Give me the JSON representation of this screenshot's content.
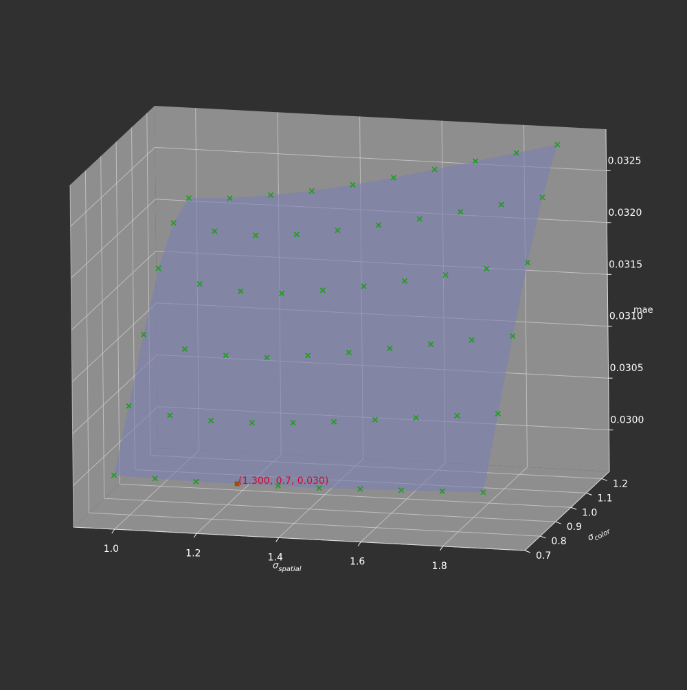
{
  "chart_data": {
    "type": "surface3d",
    "xlabel": "spatial",
    "ylabel": "color",
    "zlabel": "mae",
    "x_symbol": "σ",
    "y_symbol": "σ",
    "x_ticks": [
      "1.0",
      "1.2",
      "1.4",
      "1.6",
      "1.8"
    ],
    "y_ticks": [
      "0.7",
      "0.8",
      "0.9",
      "1.0",
      "1.1",
      "1.2"
    ],
    "z_ticks": [
      "0.0300",
      "0.0305",
      "0.0310",
      "0.0315",
      "0.0320",
      "0.0325"
    ],
    "xlim": [
      0.9,
      2.0
    ],
    "ylim": [
      0.7,
      1.25
    ],
    "zlim": [
      0.0296,
      0.0329
    ],
    "grid": true,
    "surface_color": "#7b7fb0",
    "marker_color": "#1f9e1f",
    "highlight_color": "#e0002a",
    "sigma_spatial": [
      1.0,
      1.1,
      1.2,
      1.3,
      1.4,
      1.5,
      1.6,
      1.7,
      1.8,
      1.9
    ],
    "sigma_color": [
      0.7,
      0.8,
      0.9,
      1.0,
      1.1,
      1.2
    ],
    "mae": [
      [
        0.03012,
        0.03011,
        0.0301,
        0.0301,
        0.0301,
        0.0301,
        0.03011,
        0.03012,
        0.03013,
        0.03014
      ],
      [
        0.03065,
        0.03058,
        0.03055,
        0.03055,
        0.03057,
        0.0306,
        0.03064,
        0.03068,
        0.03072,
        0.03076
      ],
      [
        0.0312,
        0.03108,
        0.03104,
        0.03104,
        0.03108,
        0.03113,
        0.03119,
        0.03125,
        0.03131,
        0.03137
      ],
      [
        0.0317,
        0.03157,
        0.03152,
        0.03152,
        0.03157,
        0.03163,
        0.0317,
        0.03178,
        0.03186,
        0.03194
      ],
      [
        0.032,
        0.03194,
        0.03192,
        0.03195,
        0.03201,
        0.03208,
        0.03216,
        0.03225,
        0.03234,
        0.03243
      ],
      [
        0.0321,
        0.03212,
        0.03217,
        0.03223,
        0.03231,
        0.0324,
        0.0325,
        0.0326,
        0.0327,
        0.0328
      ]
    ],
    "highlight": {
      "label": "(1.300, 0.7, 0.030)",
      "x": 1.3,
      "y": 0.7,
      "z": 0.0301
    }
  }
}
